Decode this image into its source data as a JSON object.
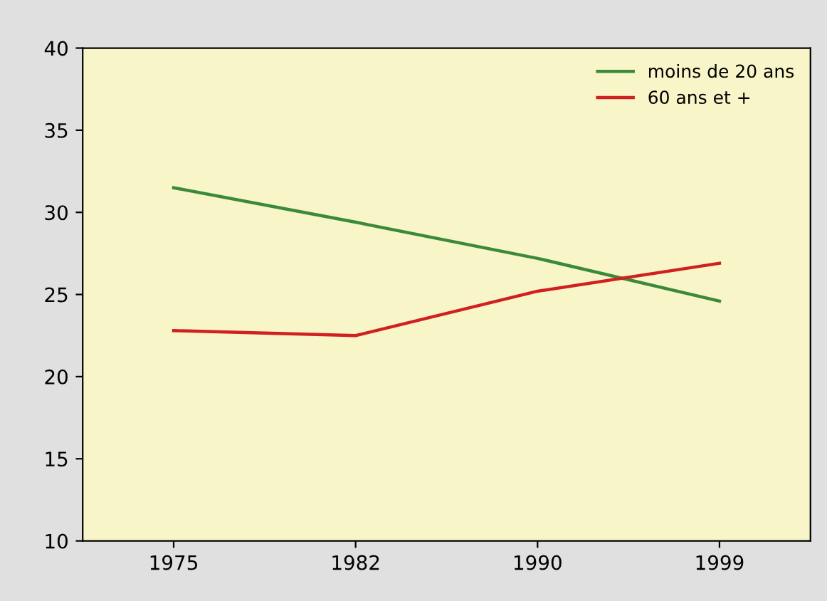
{
  "chart_data": {
    "type": "line",
    "categories": [
      "1975",
      "1982",
      "1990",
      "1999"
    ],
    "series": [
      {
        "name": "moins de 20 ans",
        "color": "#3a8a3a",
        "values": [
          31.5,
          29.4,
          27.2,
          24.6
        ]
      },
      {
        "name": "60 ans et +",
        "color": "#d02020",
        "values": [
          22.8,
          22.5,
          25.2,
          26.9
        ]
      }
    ],
    "ylim": [
      10,
      40
    ],
    "yticks": [
      10,
      15,
      20,
      25,
      30,
      35,
      40
    ],
    "grid": false,
    "legend": "top right",
    "marker": "none"
  }
}
